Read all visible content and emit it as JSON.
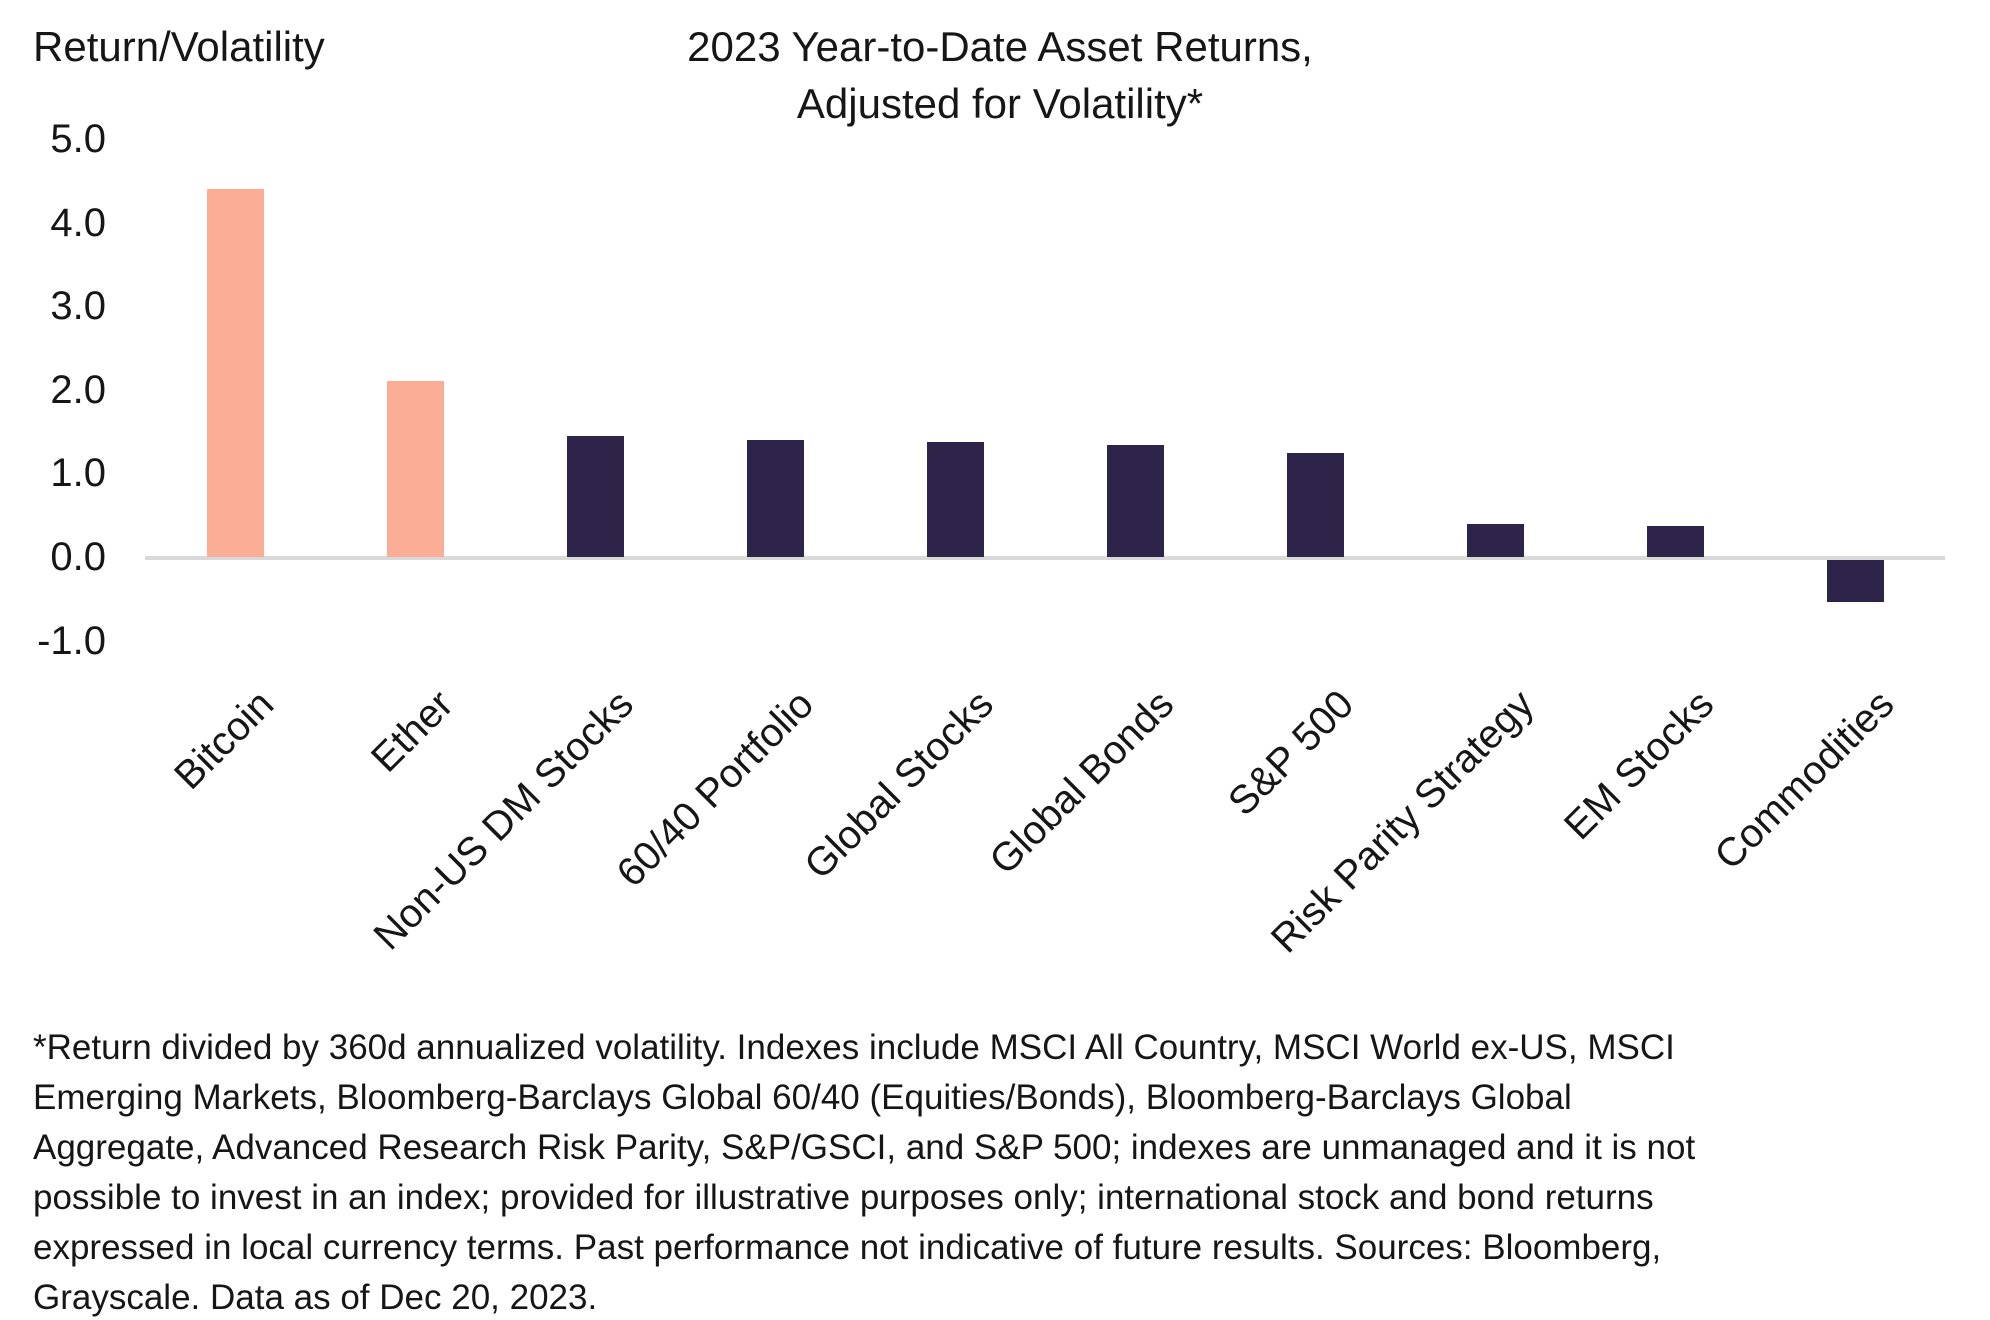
{
  "page": {
    "background": "#FFFFFF",
    "text_color": "#161616"
  },
  "chart_data": {
    "type": "bar",
    "title": "2023 Year-to-Date Asset Returns, Adjusted for Volatility*",
    "title_lines": [
      "2023 Year-to-Date Asset Returns,",
      "Adjusted for Volatility*"
    ],
    "ylabel": "Return/Volatility",
    "xlabel": "",
    "categories": [
      "Bitcoin",
      "Ether",
      "Non-US DM Stocks",
      "60/40 Portfolio",
      "Global Stocks",
      "Global Bonds",
      "S&P 500",
      "Risk Parity Strategy",
      "EM Stocks",
      "Commodities"
    ],
    "values": [
      4.4,
      2.1,
      1.45,
      1.4,
      1.37,
      1.34,
      1.25,
      0.4,
      0.37,
      -0.5
    ],
    "bar_colors": [
      "#FBAE95",
      "#FBAE95",
      "#2E2349",
      "#2E2349",
      "#2E2349",
      "#2E2349",
      "#2E2349",
      "#2E2349",
      "#2E2349",
      "#2E2349"
    ],
    "ytick_labels": [
      "5.0",
      "4.0",
      "3.0",
      "2.0",
      "1.0",
      "0.0",
      "-1.0"
    ],
    "ytick_values": [
      5,
      4,
      3,
      2,
      1,
      0,
      -1
    ],
    "ylim": [
      -1.35,
      5.4
    ],
    "grid": false,
    "legend_position": "none",
    "colors": {
      "highlight": "#FBAE95",
      "default": "#2E2349",
      "axis_line": "#D9D9D9"
    }
  },
  "footnote": {
    "lines": [
      "*Return divided by 360d annualized volatility. Indexes include MSCI All Country, MSCI World ex-US, MSCI",
      "Emerging Markets, Bloomberg-Barclays Global 60/40 (Equities/Bonds), Bloomberg-Barclays Global",
      "Aggregate, Advanced Research Risk Parity, S&P/GSCI, and S&P 500; indexes are unmanaged and it is not",
      "possible to invest in an index; provided for illustrative purposes only; international stock and bond returns",
      "expressed in local currency terms. Past performance not indicative of future results. Sources: Bloomberg,",
      "Grayscale. Data as of Dec 20, 2023."
    ]
  }
}
